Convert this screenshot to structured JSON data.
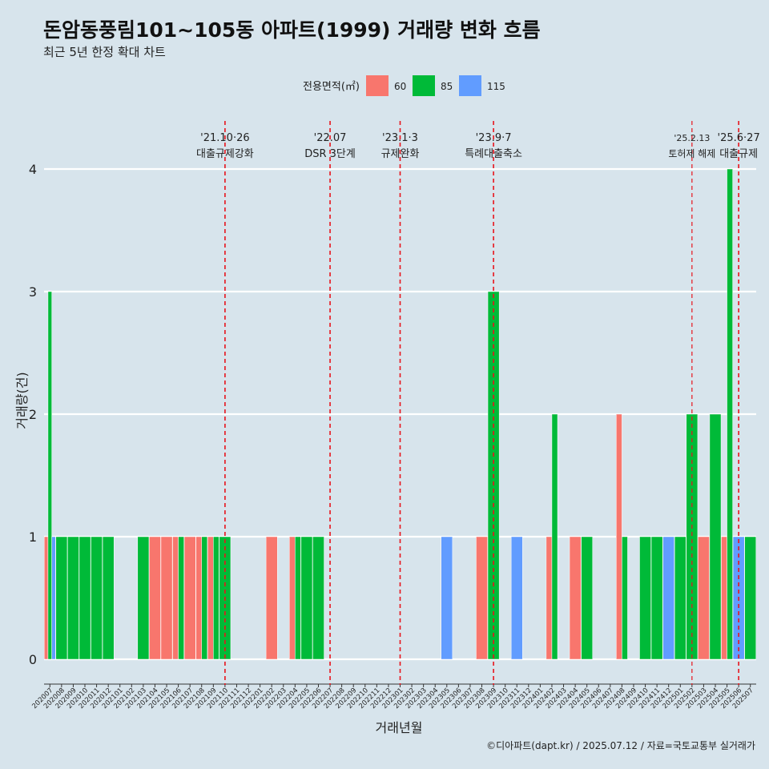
{
  "title": "돈암동풍림101~105동 아파트(1999) 거래량 변화 흐름",
  "subtitle": "최근 5년 한정 확대 차트",
  "caption": "©디아파트(dapt.kr) / 2025.07.12 / 자료=국토교통부 실거래가",
  "colors": {
    "background": "#d7e4ec",
    "s60": "#f8766d",
    "s85": "#00ba38",
    "s115": "#619cff",
    "vline": "#e8141c"
  },
  "chart_data": {
    "type": "bar",
    "xlabel": "거래년월",
    "ylabel": "거래량(건)",
    "ylim": [
      0,
      4
    ],
    "yticks": [
      0,
      1,
      2,
      3,
      4
    ],
    "legend": {
      "title": "전용면적(㎡)",
      "position": "top"
    },
    "grid": true,
    "categories": [
      "202007",
      "202008",
      "202009",
      "202010",
      "202011",
      "202012",
      "202101",
      "202102",
      "202103",
      "202104",
      "202105",
      "202106",
      "202107",
      "202108",
      "202109",
      "202110",
      "202111",
      "202112",
      "202201",
      "202202",
      "202203",
      "202204",
      "202205",
      "202206",
      "202207",
      "202208",
      "202209",
      "202210",
      "202211",
      "202212",
      "202301",
      "202302",
      "202303",
      "202304",
      "202305",
      "202306",
      "202307",
      "202308",
      "202309",
      "202310",
      "202311",
      "202312",
      "202401",
      "202402",
      "202403",
      "202404",
      "202405",
      "202406",
      "202407",
      "202408",
      "202409",
      "202410",
      "202411",
      "202412",
      "202501",
      "202502",
      "202503",
      "202504",
      "202505",
      "202506",
      "202507"
    ],
    "series": [
      {
        "name": "60",
        "values": [
          1,
          0,
          0,
          0,
          0,
          0,
          0,
          0,
          0,
          1,
          1,
          1,
          1,
          1,
          1,
          0,
          0,
          0,
          0,
          1,
          0,
          1,
          0,
          0,
          0,
          0,
          0,
          0,
          0,
          0,
          0,
          0,
          0,
          0,
          0,
          0,
          0,
          1,
          0,
          0,
          0,
          0,
          0,
          1,
          0,
          1,
          0,
          0,
          0,
          2,
          0,
          0,
          0,
          0,
          0,
          0,
          1,
          0,
          1,
          0,
          0
        ]
      },
      {
        "name": "85",
        "values": [
          3,
          1,
          1,
          1,
          1,
          1,
          0,
          0,
          1,
          0,
          0,
          1,
          0,
          1,
          1,
          1,
          0,
          0,
          0,
          0,
          0,
          1,
          1,
          1,
          0,
          0,
          0,
          0,
          0,
          0,
          0,
          0,
          0,
          0,
          0,
          0,
          0,
          0,
          3,
          0,
          0,
          0,
          0,
          2,
          0,
          0,
          1,
          0,
          0,
          1,
          0,
          1,
          1,
          0,
          1,
          2,
          0,
          2,
          4,
          0,
          1
        ]
      },
      {
        "name": "115",
        "values": [
          1,
          0,
          0,
          0,
          0,
          0,
          0,
          0,
          0,
          0,
          0,
          0,
          0,
          0,
          0,
          0,
          0,
          0,
          0,
          0,
          0,
          0,
          0,
          0,
          0,
          0,
          0,
          0,
          0,
          0,
          0,
          0,
          0,
          0,
          1,
          0,
          0,
          0,
          0,
          0,
          1,
          0,
          0,
          0,
          0,
          0,
          0,
          0,
          0,
          0,
          0,
          0,
          0,
          1,
          0,
          0,
          0,
          0,
          0,
          1,
          0
        ]
      }
    ],
    "events": [
      {
        "month": "202110",
        "date": "'21.10·26",
        "label": "대출규제강화"
      },
      {
        "month": "202207",
        "date": "'22.07",
        "label": "DSR 3단계"
      },
      {
        "month": "202301",
        "date": "'23.1·3",
        "label": "규제완화"
      },
      {
        "month": "202309",
        "date": "'23.9·7",
        "label": "특례대출축소"
      },
      {
        "month": "202502",
        "date": "'25.2.13",
        "label": "토허제 해제"
      },
      {
        "month": "202506",
        "date": "'25.6·27",
        "label": "대출규제"
      }
    ]
  }
}
